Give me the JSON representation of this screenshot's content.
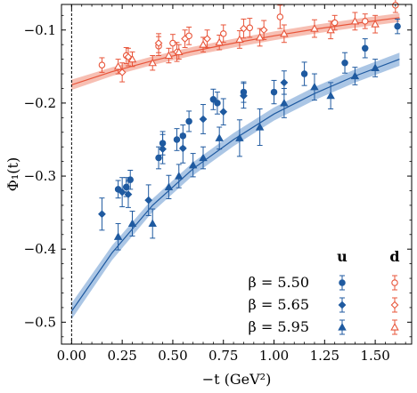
{
  "chart_data": {
    "type": "scatter",
    "xlabel": "−t (GeV²)",
    "ylabel": "Φ₁(t)",
    "xlim": [
      -0.05,
      1.68
    ],
    "ylim": [
      -0.53,
      -0.065
    ],
    "xticks": [
      0.0,
      0.25,
      0.5,
      0.75,
      1.0,
      1.25,
      1.5
    ],
    "xtick_labels": [
      "0.00",
      "0.25",
      "0.50",
      "0.75",
      "1.00",
      "1.25",
      "1.50"
    ],
    "yticks": [
      -0.5,
      -0.4,
      -0.3,
      -0.2,
      -0.1
    ],
    "ytick_labels": [
      "−0.5",
      "−0.4",
      "−0.3",
      "−0.2",
      "−0.1"
    ],
    "grid": false,
    "reference_line_x": 0.0,
    "colors": {
      "u": "#1f5aa0",
      "d": "#e8553a",
      "u_band": "#8fb3dc",
      "d_band": "#f4a99a"
    },
    "legend": {
      "placement": "bottom-right",
      "column_headers": [
        "u",
        "d"
      ],
      "row_labels": [
        "β = 5.50",
        "β = 5.65",
        "β = 5.95"
      ],
      "markers": [
        "circle",
        "diamond",
        "triangle"
      ]
    },
    "fit_bands": [
      {
        "flavor": "u",
        "x": [
          0.0,
          0.2,
          0.4,
          0.6,
          0.8,
          1.0,
          1.2,
          1.4,
          1.62
        ],
        "y": [
          -0.485,
          -0.405,
          -0.34,
          -0.29,
          -0.25,
          -0.215,
          -0.187,
          -0.163,
          -0.14
        ],
        "err": [
          0.011,
          0.01,
          0.009,
          0.009,
          0.009,
          0.009,
          0.009,
          0.009,
          0.009
        ]
      },
      {
        "flavor": "d",
        "x": [
          0.0,
          0.2,
          0.4,
          0.6,
          0.8,
          1.0,
          1.2,
          1.4,
          1.62
        ],
        "y": [
          -0.175,
          -0.157,
          -0.142,
          -0.129,
          -0.118,
          -0.108,
          -0.099,
          -0.091,
          -0.083
        ],
        "err": [
          0.007,
          0.006,
          0.006,
          0.006,
          0.006,
          0.006,
          0.006,
          0.006,
          0.006
        ]
      }
    ],
    "series": [
      {
        "flavor": "u",
        "beta": "5.50",
        "marker": "circle",
        "filled": true,
        "points": [
          [
            0.23,
            -0.318,
            0.012
          ],
          [
            0.27,
            -0.315,
            0.013
          ],
          [
            0.29,
            -0.305,
            0.013
          ],
          [
            0.43,
            -0.275,
            0.015
          ],
          [
            0.45,
            -0.255,
            0.016
          ],
          [
            0.52,
            -0.25,
            0.015
          ],
          [
            0.55,
            -0.245,
            0.015
          ],
          [
            0.58,
            -0.225,
            0.014
          ],
          [
            0.7,
            -0.195,
            0.014
          ],
          [
            0.72,
            -0.2,
            0.015
          ],
          [
            0.85,
            -0.185,
            0.014
          ],
          [
            1.0,
            -0.185,
            0.016
          ],
          [
            1.15,
            -0.16,
            0.016
          ],
          [
            1.35,
            -0.145,
            0.014
          ],
          [
            1.45,
            -0.125,
            0.013
          ],
          [
            1.61,
            -0.095,
            0.01
          ]
        ]
      },
      {
        "flavor": "u",
        "beta": "5.65",
        "marker": "diamond",
        "filled": true,
        "points": [
          [
            0.15,
            -0.352,
            0.022
          ],
          [
            0.25,
            -0.322,
            0.02
          ],
          [
            0.28,
            -0.325,
            0.018
          ],
          [
            0.38,
            -0.333,
            0.021
          ],
          [
            0.45,
            -0.263,
            0.02
          ],
          [
            0.55,
            -0.262,
            0.02
          ],
          [
            0.65,
            -0.222,
            0.02
          ],
          [
            0.75,
            -0.212,
            0.018
          ],
          [
            0.85,
            -0.19,
            0.017
          ],
          [
            1.05,
            -0.172,
            0.016
          ]
        ]
      },
      {
        "flavor": "u",
        "beta": "5.95",
        "marker": "triangle",
        "filled": true,
        "points": [
          [
            0.23,
            -0.383,
            0.018
          ],
          [
            0.3,
            -0.365,
            0.017
          ],
          [
            0.4,
            -0.365,
            0.02
          ],
          [
            0.48,
            -0.315,
            0.016
          ],
          [
            0.53,
            -0.3,
            0.016
          ],
          [
            0.6,
            -0.285,
            0.016
          ],
          [
            0.65,
            -0.275,
            0.015
          ],
          [
            0.73,
            -0.248,
            0.015
          ],
          [
            0.83,
            -0.248,
            0.025
          ],
          [
            0.93,
            -0.233,
            0.025
          ],
          [
            1.05,
            -0.2,
            0.02
          ],
          [
            1.2,
            -0.178,
            0.018
          ],
          [
            1.28,
            -0.19,
            0.018
          ],
          [
            1.4,
            -0.163,
            0.012
          ],
          [
            1.5,
            -0.152,
            0.012
          ]
        ]
      },
      {
        "flavor": "d",
        "beta": "5.50",
        "marker": "circle",
        "filled": false,
        "points": [
          [
            0.15,
            -0.148,
            0.01
          ],
          [
            0.27,
            -0.135,
            0.011
          ],
          [
            0.43,
            -0.122,
            0.013
          ],
          [
            0.5,
            -0.118,
            0.012
          ],
          [
            0.58,
            -0.108,
            0.012
          ],
          [
            0.75,
            -0.105,
            0.012
          ],
          [
            0.88,
            -0.097,
            0.013
          ],
          [
            1.03,
            -0.082,
            0.016
          ],
          [
            1.3,
            -0.09,
            0.01
          ],
          [
            1.45,
            -0.088,
            0.01
          ],
          [
            1.6,
            -0.066,
            0.01
          ]
        ]
      },
      {
        "flavor": "d",
        "beta": "5.65",
        "marker": "diamond",
        "filled": false,
        "points": [
          [
            0.25,
            -0.158,
            0.013
          ],
          [
            0.28,
            -0.137,
            0.012
          ],
          [
            0.43,
            -0.118,
            0.013
          ],
          [
            0.52,
            -0.13,
            0.013
          ],
          [
            0.56,
            -0.112,
            0.012
          ],
          [
            0.67,
            -0.112,
            0.012
          ],
          [
            0.85,
            -0.098,
            0.013
          ],
          [
            0.95,
            -0.1,
            0.013
          ]
        ]
      },
      {
        "flavor": "d",
        "beta": "5.95",
        "marker": "triangle",
        "filled": false,
        "points": [
          [
            0.23,
            -0.15,
            0.01
          ],
          [
            0.3,
            -0.14,
            0.01
          ],
          [
            0.4,
            -0.145,
            0.01
          ],
          [
            0.48,
            -0.135,
            0.01
          ],
          [
            0.53,
            -0.13,
            0.01
          ],
          [
            0.65,
            -0.12,
            0.01
          ],
          [
            0.73,
            -0.117,
            0.01
          ],
          [
            0.83,
            -0.113,
            0.012
          ],
          [
            0.93,
            -0.11,
            0.012
          ],
          [
            1.05,
            -0.105,
            0.012
          ],
          [
            1.2,
            -0.098,
            0.012
          ],
          [
            1.28,
            -0.1,
            0.012
          ],
          [
            1.4,
            -0.088,
            0.012
          ],
          [
            1.5,
            -0.092,
            0.012
          ]
        ]
      }
    ]
  }
}
